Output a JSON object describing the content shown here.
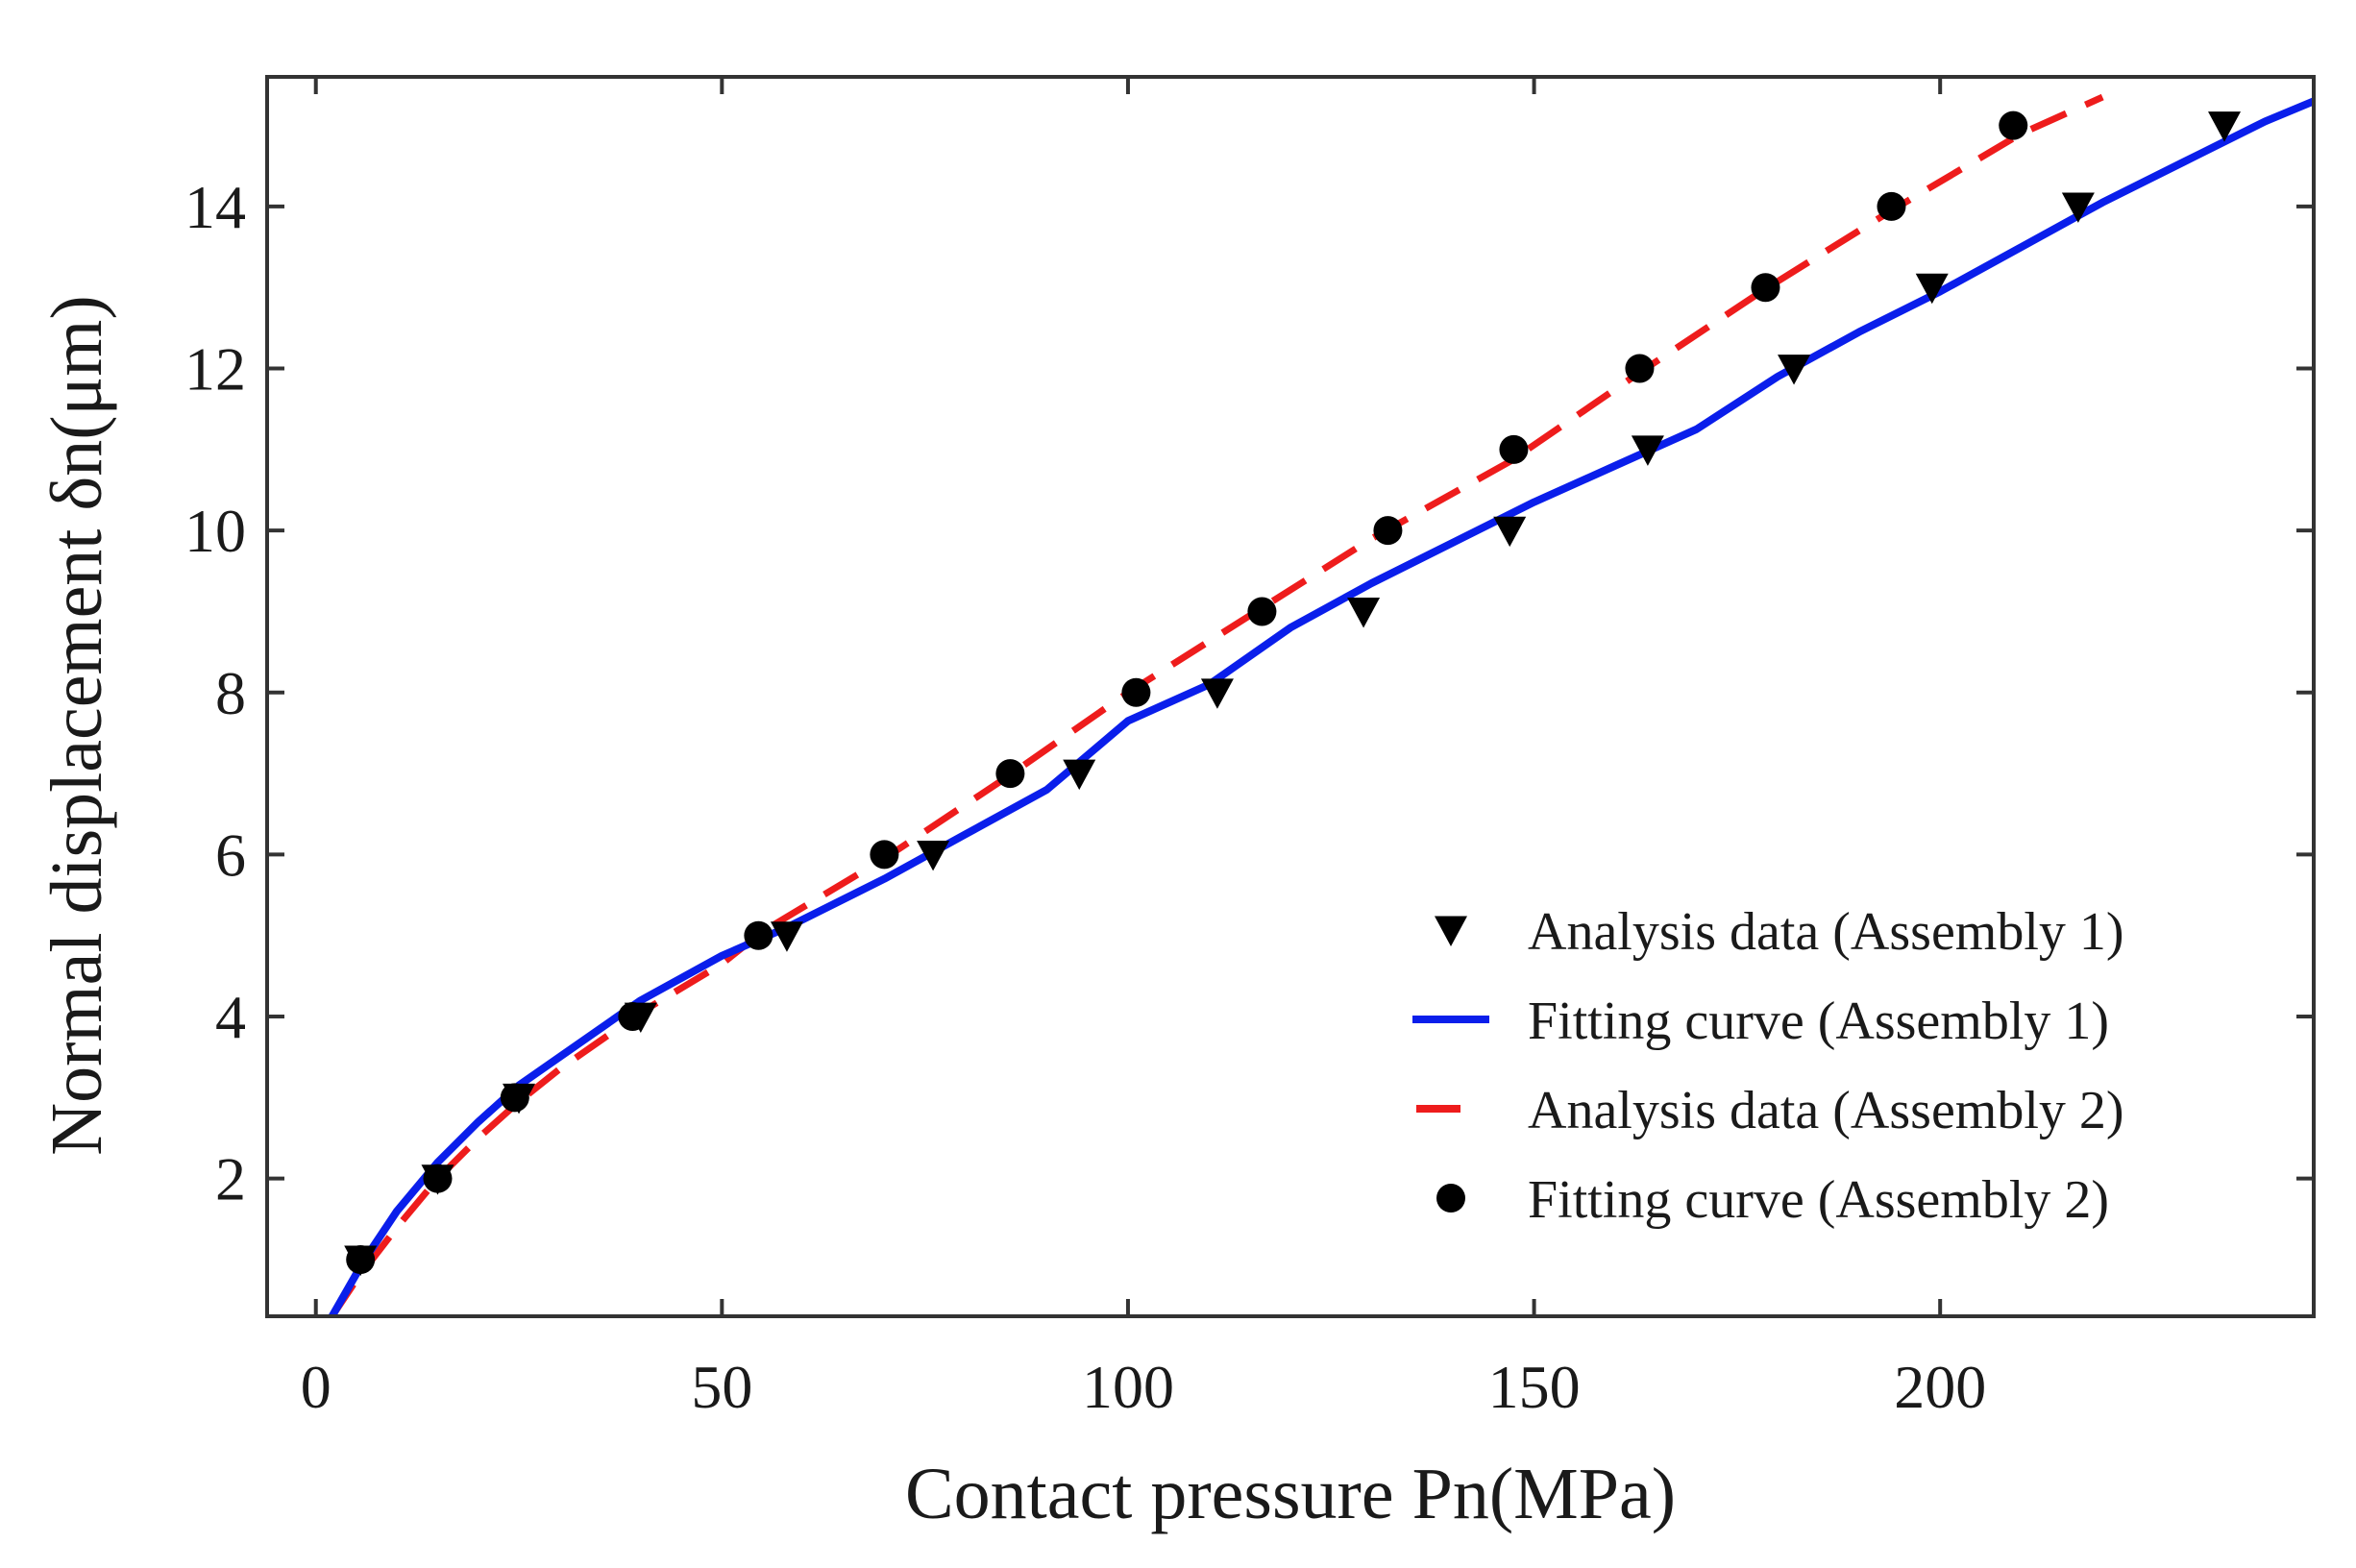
{
  "chart_data": {
    "type": "line",
    "title": "",
    "xlabel": "Contact pressure Pn(MPa)",
    "ylabel": "Normal displacement δn(μm)",
    "xlim": [
      -6,
      246
    ],
    "ylim": [
      0.3,
      15.6
    ],
    "xticks": [
      0,
      50,
      100,
      150,
      200
    ],
    "yticks": [
      2,
      4,
      6,
      8,
      10,
      12,
      14
    ],
    "xtick_labels": [
      "0",
      "50",
      "100",
      "150",
      "200"
    ],
    "ytick_labels": [
      "2",
      "4",
      "6",
      "8",
      "10",
      "12",
      "14"
    ],
    "grid": false,
    "legend_position": "bottom-right",
    "series": [
      {
        "name": "Analysis data (Assembly 1)",
        "kind": "scatter",
        "marker": "triangle-down",
        "color": "#000000",
        "points": [
          [
            5.5,
            1
          ],
          [
            15,
            2
          ],
          [
            25,
            3
          ],
          [
            40,
            4
          ],
          [
            58,
            5
          ],
          [
            76,
            6
          ],
          [
            94,
            7
          ],
          [
            111,
            8
          ],
          [
            129,
            9
          ],
          [
            147,
            10
          ],
          [
            164,
            11
          ],
          [
            182,
            12
          ],
          [
            199,
            13
          ],
          [
            217,
            14
          ],
          [
            235,
            15
          ]
        ]
      },
      {
        "name": "Fitting curve (Assembly 1)",
        "kind": "line",
        "style": "solid",
        "color": "#0a1eeb",
        "points": [
          [
            2,
            0.3
          ],
          [
            4,
            0.65
          ],
          [
            6,
            1
          ],
          [
            10,
            1.6
          ],
          [
            15,
            2.2
          ],
          [
            20,
            2.7
          ],
          [
            25,
            3.15
          ],
          [
            30,
            3.5
          ],
          [
            40,
            4.2
          ],
          [
            50,
            4.75
          ],
          [
            58,
            5.1
          ],
          [
            70,
            5.7
          ],
          [
            80,
            6.25
          ],
          [
            90,
            6.8
          ],
          [
            100,
            7.65
          ],
          [
            110,
            8.1
          ],
          [
            120,
            8.8
          ],
          [
            130,
            9.35
          ],
          [
            140,
            9.85
          ],
          [
            150,
            10.35
          ],
          [
            160,
            10.8
          ],
          [
            170,
            11.25
          ],
          [
            180,
            11.9
          ],
          [
            190,
            12.45
          ],
          [
            200,
            12.95
          ],
          [
            210,
            13.5
          ],
          [
            220,
            14.05
          ],
          [
            230,
            14.55
          ],
          [
            240,
            15.05
          ],
          [
            246,
            15.3
          ]
        ]
      },
      {
        "name": "Analysis data (Assembly 2)",
        "kind": "line",
        "style": "dashed",
        "color": "#ee1c1c",
        "points": [
          [
            2,
            0.3
          ],
          [
            5,
            0.75
          ],
          [
            10,
            1.4
          ],
          [
            15,
            2.0
          ],
          [
            20,
            2.5
          ],
          [
            25,
            2.95
          ],
          [
            30,
            3.35
          ],
          [
            40,
            4.05
          ],
          [
            50,
            4.65
          ],
          [
            55,
            5.05
          ],
          [
            70,
            5.95
          ],
          [
            85,
            6.95
          ],
          [
            100,
            8.0
          ],
          [
            115,
            8.95
          ],
          [
            130,
            9.9
          ],
          [
            147,
            10.85
          ],
          [
            163,
            11.95
          ],
          [
            178,
            12.95
          ],
          [
            194,
            13.95
          ],
          [
            210,
            14.9
          ],
          [
            220,
            15.35
          ]
        ]
      },
      {
        "name": "Fitting curve (Assembly 2)",
        "kind": "scatter",
        "marker": "circle",
        "color": "#000000",
        "points": [
          [
            5.5,
            1
          ],
          [
            15,
            2
          ],
          [
            24.5,
            3
          ],
          [
            39,
            4
          ],
          [
            54.5,
            5
          ],
          [
            70,
            6
          ],
          [
            85.5,
            7
          ],
          [
            101,
            8
          ],
          [
            116.5,
            9
          ],
          [
            132,
            10
          ],
          [
            147.5,
            11
          ],
          [
            163,
            12
          ],
          [
            178.5,
            13
          ],
          [
            194,
            14
          ],
          [
            209,
            15
          ]
        ]
      }
    ],
    "legend": [
      {
        "label": "Analysis data (Assembly 1)",
        "symbol": "triangle-down",
        "color": "#000000"
      },
      {
        "label": "Fitting curve (Assembly 1)",
        "symbol": "solid-line",
        "color": "#0a1eeb"
      },
      {
        "label": "Analysis data (Assembly 2)",
        "symbol": "dashed-line",
        "color": "#ee1c1c"
      },
      {
        "label": "Fitting curve (Assembly 2)",
        "symbol": "circle",
        "color": "#000000"
      }
    ]
  }
}
